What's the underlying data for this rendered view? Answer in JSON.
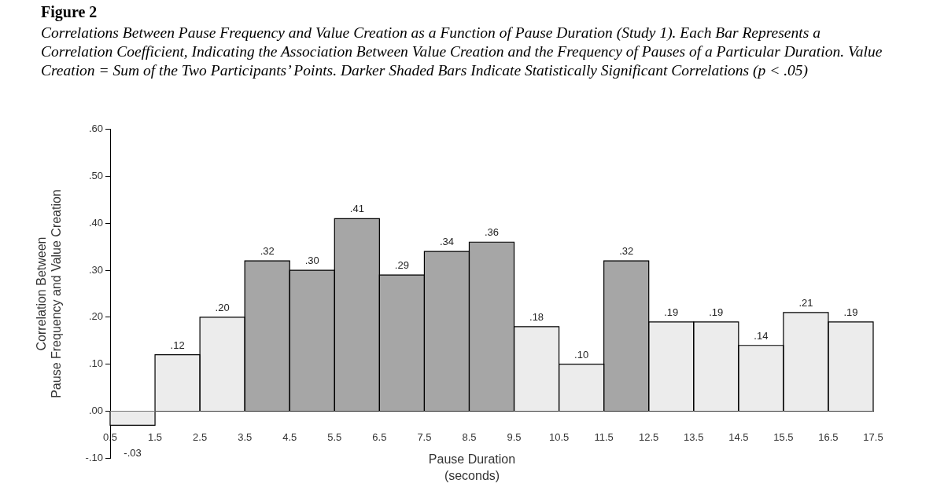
{
  "chart_data": {
    "type": "histogram",
    "title": "Figure 2",
    "subtitle": "Correlations Between Pause Frequency and Value Creation as a Function of Pause Duration (Study 1). Each Bar Represents a Correlation Coefficient, Indicating the Association Between Value Creation and the Frequency of Pauses of a Particular Duration. Value Creation = Sum of the Two Participants’ Points. Darker Shaded Bars Indicate Statistically Significant Correlations (p < .05)",
    "xlabel": "Pause Duration\n(seconds)",
    "ylabel": "Correlation Between\nPause Frequency and Value Creation",
    "bins": [
      0.5,
      1.5,
      2.5,
      3.5,
      4.5,
      5.5,
      6.5,
      7.5,
      8.5,
      9.5,
      10.5,
      11.5,
      12.5,
      13.5,
      14.5,
      15.5,
      16.5,
      17.5
    ],
    "values": [
      -0.03,
      0.12,
      0.2,
      0.32,
      0.3,
      0.41,
      0.29,
      0.34,
      0.36,
      0.18,
      0.1,
      0.32,
      0.19,
      0.19,
      0.14,
      0.21,
      0.19
    ],
    "value_labels": [
      "-.03",
      ".12",
      ".20",
      ".32",
      ".30",
      ".41",
      ".29",
      ".34",
      ".36",
      ".18",
      ".10",
      ".32",
      ".19",
      ".19",
      ".14",
      ".21",
      ".19"
    ],
    "colors": [
      "#ececec",
      "#ececec",
      "#ececec",
      "#a6a6a6",
      "#a6a6a6",
      "#a6a6a6",
      "#a6a6a6",
      "#a6a6a6",
      "#a6a6a6",
      "#ececec",
      "#ececec",
      "#a6a6a6",
      "#ececec",
      "#ececec",
      "#ececec",
      "#ececec",
      "#ececec"
    ],
    "xlim": [
      0.5,
      17.5
    ],
    "xticks": [
      0.5,
      1.5,
      2.5,
      3.5,
      4.5,
      5.5,
      6.5,
      7.5,
      8.5,
      9.5,
      10.5,
      11.5,
      12.5,
      13.5,
      14.5,
      15.5,
      16.5,
      17.5
    ],
    "ylim": [
      -0.1,
      0.6
    ],
    "yticks": [
      {
        "value": -0.1,
        "label": "-.10"
      },
      {
        "value": 0,
        "label": ".00"
      },
      {
        "value": 0.1,
        "label": ".10"
      },
      {
        "value": 0.2,
        "label": ".20"
      },
      {
        "value": 0.3,
        "label": ".30"
      },
      {
        "value": 0.4,
        "label": ".40"
      },
      {
        "value": 0.5,
        "label": ".50"
      },
      {
        "value": 0.6,
        "label": ".60"
      }
    ],
    "grid": false,
    "legend": false
  }
}
